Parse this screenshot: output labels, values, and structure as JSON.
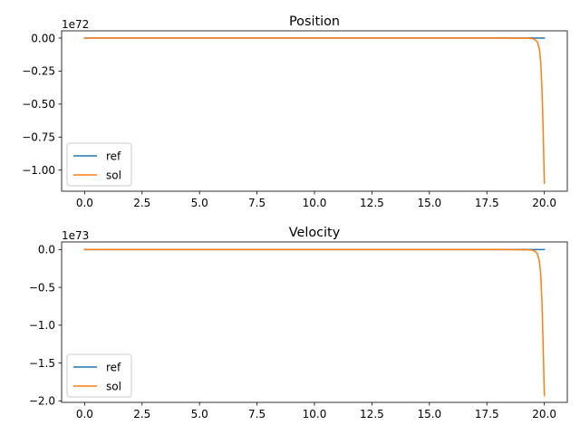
{
  "figure": {
    "background": "#ffffff"
  },
  "chart_data": [
    {
      "type": "line",
      "title": "Position",
      "xlabel": "",
      "ylabel": "",
      "offset_text": "1e72",
      "xlim": [
        -1.0,
        21.0
      ],
      "ylim": [
        -1.16,
        0.055
      ],
      "xticks": [
        0.0,
        2.5,
        5.0,
        7.5,
        10.0,
        12.5,
        15.0,
        17.5,
        20.0
      ],
      "xtick_labels": [
        "0.0",
        "2.5",
        "5.0",
        "7.5",
        "10.0",
        "12.5",
        "15.0",
        "17.5",
        "20.0"
      ],
      "yticks": [
        0.0,
        -0.25,
        -0.5,
        -0.75,
        -1.0
      ],
      "ytick_labels": [
        "0.00",
        "−0.25",
        "−0.50",
        "−0.75",
        "−1.00"
      ],
      "grid": false,
      "legend_position": "lower-left",
      "series": [
        {
          "name": "ref",
          "color": "#1f77b4",
          "x": [
            0,
            5,
            10,
            15,
            19,
            20
          ],
          "y": [
            0,
            0,
            0,
            0,
            0,
            0
          ]
        },
        {
          "name": "sol",
          "color": "#ff7f0e",
          "x": [
            0,
            5,
            10,
            15,
            18,
            19.3,
            19.5,
            19.6,
            19.7,
            19.75,
            19.8,
            19.85,
            19.9,
            19.95,
            20.0
          ],
          "y": [
            0,
            0,
            0,
            0,
            0,
            -0.002,
            -0.005,
            -0.012,
            -0.03,
            -0.06,
            -0.1,
            -0.2,
            -0.4,
            -0.7,
            -1.1
          ]
        }
      ]
    },
    {
      "type": "line",
      "title": "Velocity",
      "xlabel": "",
      "ylabel": "",
      "offset_text": "1e73",
      "xlim": [
        -1.0,
        21.0
      ],
      "ylim": [
        -2.02,
        0.1
      ],
      "xticks": [
        0.0,
        2.5,
        5.0,
        7.5,
        10.0,
        12.5,
        15.0,
        17.5,
        20.0
      ],
      "xtick_labels": [
        "0.0",
        "2.5",
        "5.0",
        "7.5",
        "10.0",
        "12.5",
        "15.0",
        "17.5",
        "20.0"
      ],
      "yticks": [
        0.0,
        -0.5,
        -1.0,
        -1.5,
        -2.0
      ],
      "ytick_labels": [
        "0.0",
        "−0.5",
        "−1.0",
        "−1.5",
        "−2.0"
      ],
      "grid": false,
      "legend_position": "lower-left",
      "series": [
        {
          "name": "ref",
          "color": "#1f77b4",
          "x": [
            0,
            5,
            10,
            15,
            19,
            20
          ],
          "y": [
            0,
            0,
            0,
            0,
            0,
            0
          ]
        },
        {
          "name": "sol",
          "color": "#ff7f0e",
          "x": [
            0,
            5,
            10,
            15,
            18,
            19.3,
            19.5,
            19.6,
            19.7,
            19.75,
            19.8,
            19.85,
            19.9,
            19.95,
            20.0
          ],
          "y": [
            0,
            0,
            0,
            0,
            0,
            -0.004,
            -0.01,
            -0.024,
            -0.055,
            -0.11,
            -0.19,
            -0.36,
            -0.72,
            -1.28,
            -1.93
          ]
        }
      ]
    }
  ]
}
